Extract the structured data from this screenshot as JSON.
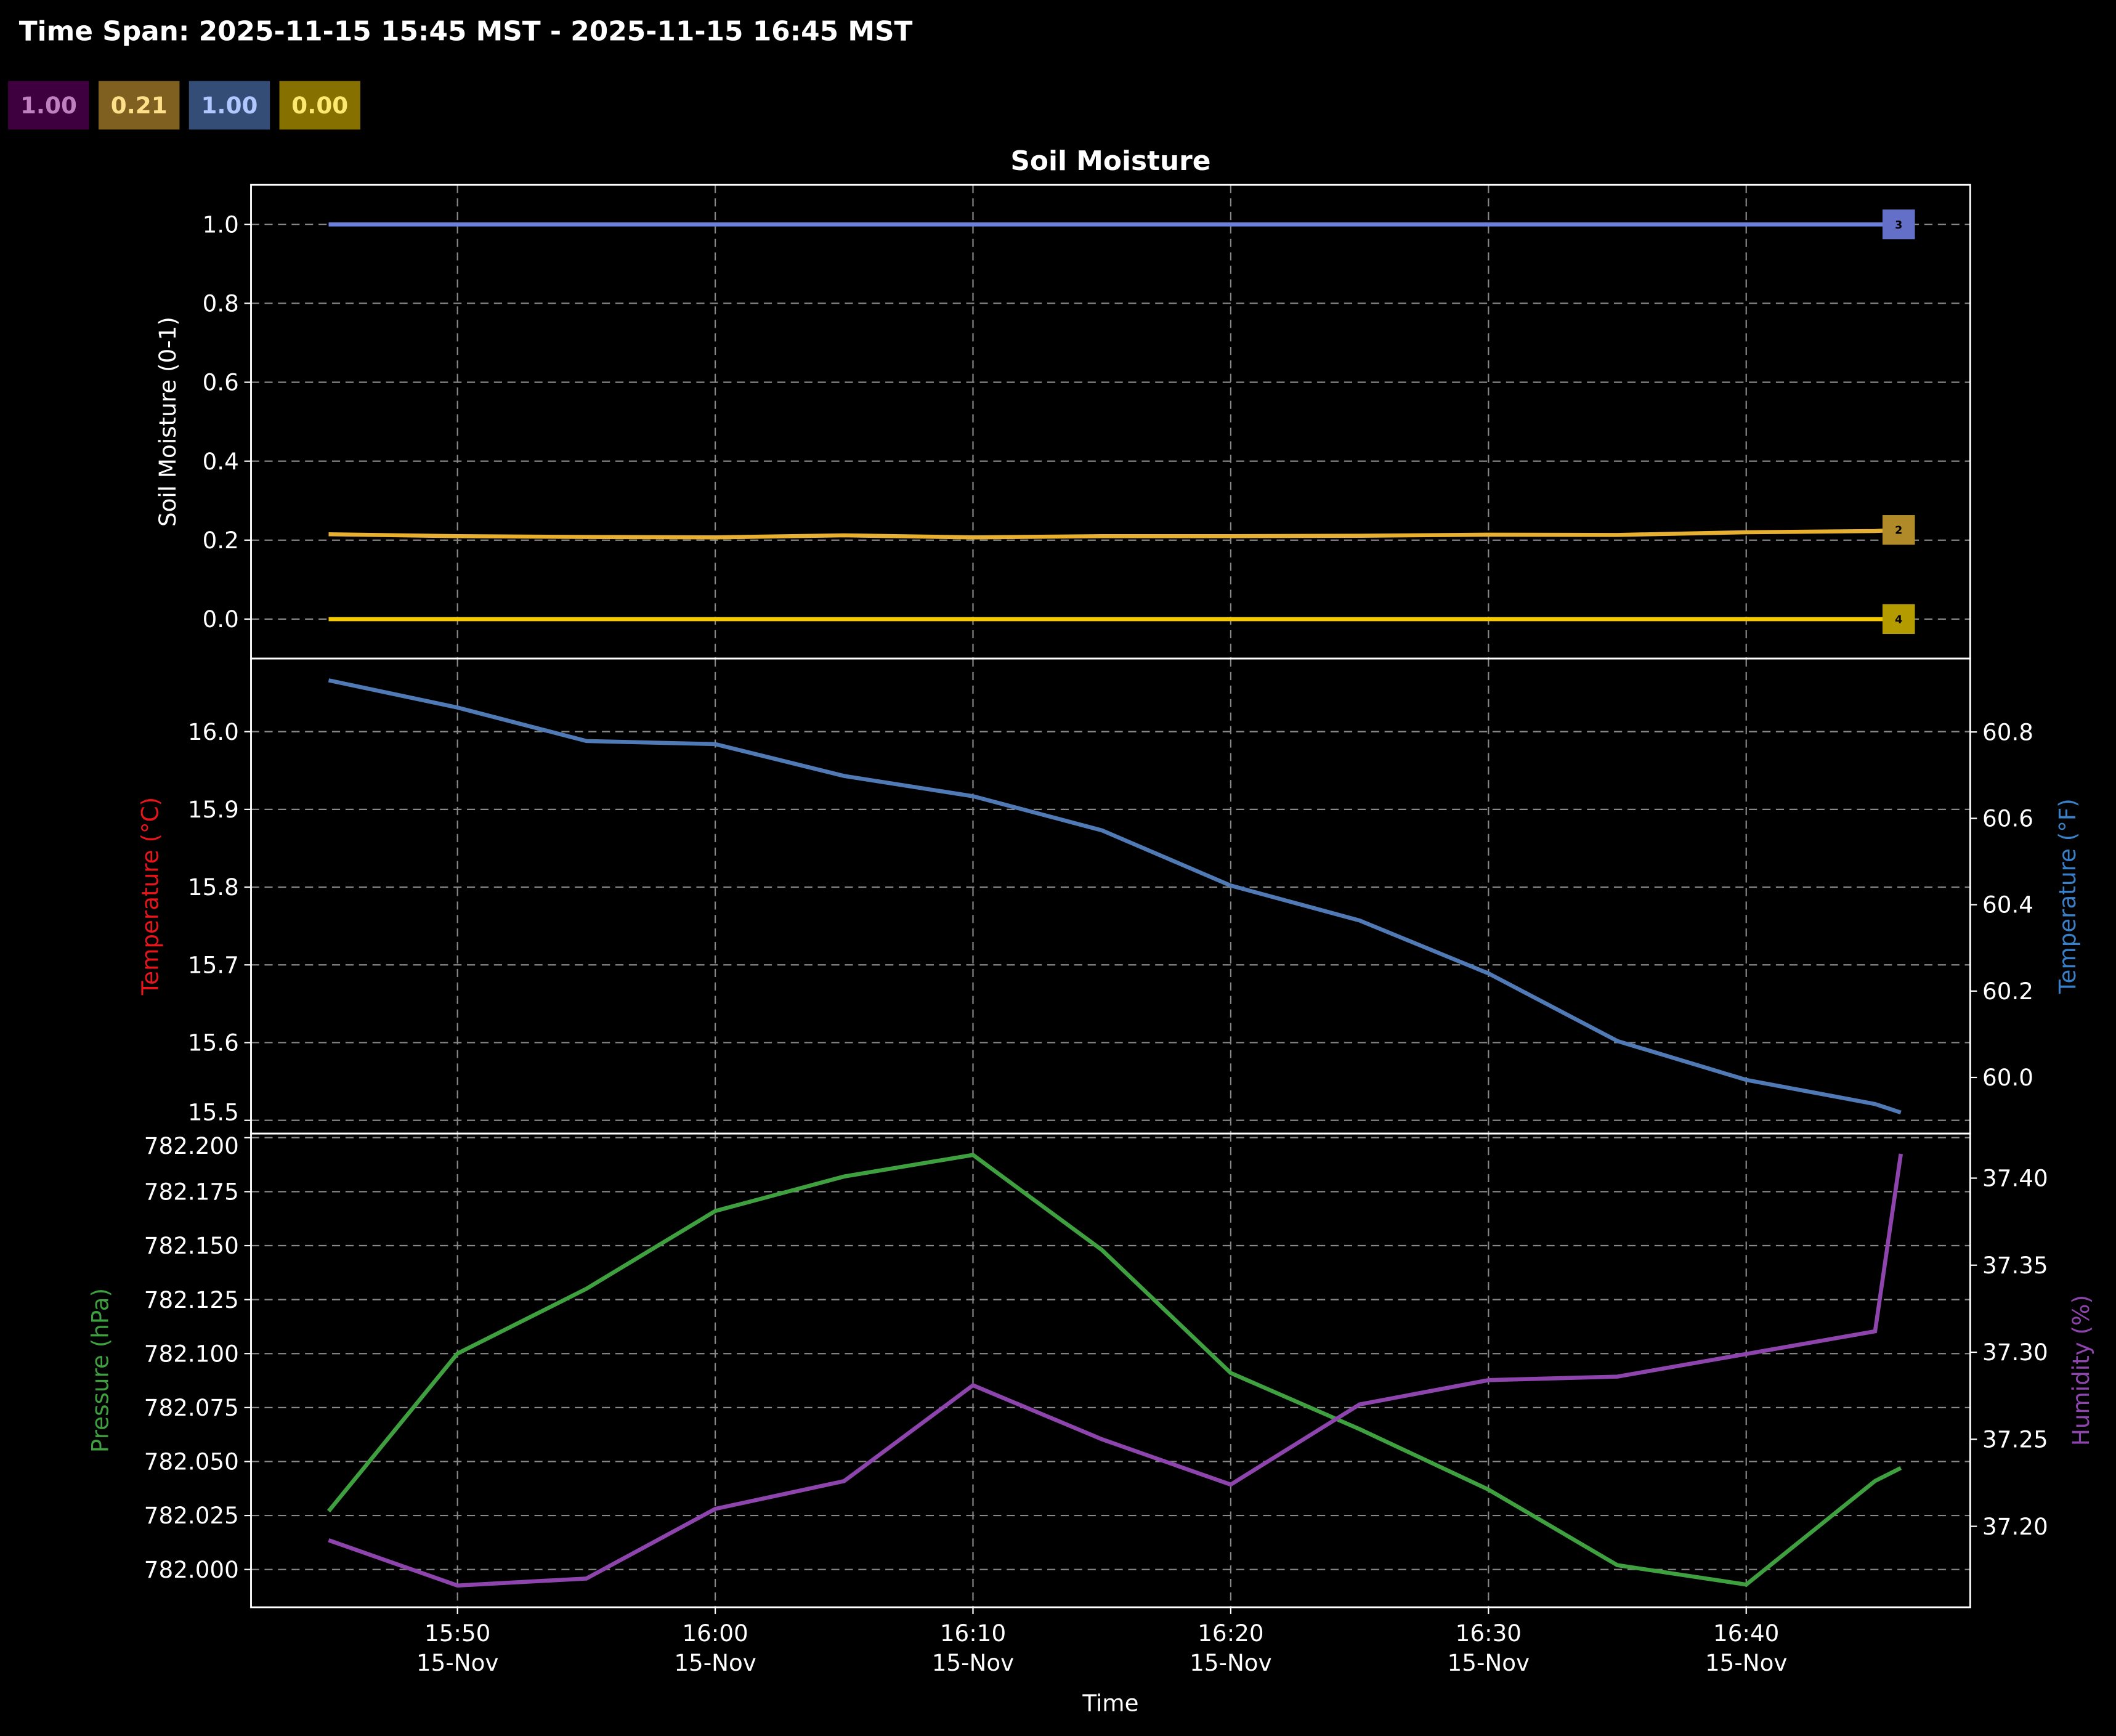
{
  "header": {
    "title": "Time Span: 2025-11-15 15:45 MST - 2025-11-15 16:45 MST",
    "badges": [
      {
        "label": "1.00",
        "bg": "#3f003f",
        "fg": "#c080c0"
      },
      {
        "label": "0.21",
        "bg": "#806020",
        "fg": "#ffe08a"
      },
      {
        "label": "1.00",
        "bg": "#334d77",
        "fg": "#b0c8ff"
      },
      {
        "label": "0.00",
        "bg": "#857000",
        "fg": "#ffe870"
      }
    ]
  },
  "chart_data": [
    {
      "type": "line",
      "title": "Soil Moisture",
      "ylabel": "Soil Moisture (0-1)",
      "ylim": [
        -0.1,
        1.1
      ],
      "yticks": [
        "0.0",
        "0.2",
        "0.4",
        "0.6",
        "0.8",
        "1.0"
      ],
      "grid": true,
      "x": [
        "15:45",
        "15:50",
        "15:55",
        "16:00",
        "16:05",
        "16:10",
        "16:15",
        "16:20",
        "16:25",
        "16:30",
        "16:35",
        "16:40",
        "16:45",
        "16:46"
      ],
      "series": [
        {
          "name": "3",
          "color": "#6a80dc",
          "label_bg": "#6470c8",
          "values": [
            1,
            1,
            1,
            1,
            1,
            1,
            1,
            1,
            1,
            1,
            1,
            1,
            1,
            1
          ]
        },
        {
          "name": "2",
          "color": "#e8b030",
          "label_bg": "#b08a28",
          "values": [
            0.215,
            0.21,
            0.208,
            0.207,
            0.212,
            0.207,
            0.21,
            0.21,
            0.211,
            0.214,
            0.213,
            0.22,
            0.223,
            0.226
          ]
        },
        {
          "name": "4",
          "color": "#f5c800",
          "label_bg": "#b39b00",
          "values": [
            0,
            0,
            0,
            0,
            0,
            0,
            0,
            0,
            0,
            0,
            0,
            0,
            0,
            0
          ]
        }
      ]
    },
    {
      "type": "line",
      "ylabel_left": "Temperature (°C)",
      "ylabel_right": "Temperature (°F)",
      "ylabel_left_color": "#e8161b",
      "ylabel_right_color": "#3a80c8",
      "ylim_left": [
        15.483,
        16.094
      ],
      "yticks_left": [
        "15.5",
        "15.6",
        "15.7",
        "15.8",
        "15.9",
        "16.0"
      ],
      "ylim_right": [
        59.87,
        60.97
      ],
      "yticks_right": [
        "60.0",
        "60.2",
        "60.4",
        "60.6",
        "60.8"
      ],
      "grid": true,
      "x": [
        "15:45",
        "15:50",
        "15:55",
        "16:00",
        "16:05",
        "16:10",
        "16:15",
        "16:20",
        "16:25",
        "16:30",
        "16:35",
        "16:40",
        "16:45",
        "16:46"
      ],
      "series": [
        {
          "color": "#4f7ab5",
          "values": [
            16.066,
            16.031,
            15.988,
            15.984,
            15.943,
            15.917,
            15.873,
            15.802,
            15.757,
            15.689,
            15.602,
            15.552,
            15.521,
            15.51
          ]
        }
      ]
    },
    {
      "type": "line",
      "xlabel": "Time",
      "xticks": [
        "15:50",
        "16:00",
        "16:10",
        "16:20",
        "16:30",
        "16:40"
      ],
      "xtick_sublabel": "15-Nov",
      "ylabel_left": "Pressure (hPa)",
      "ylabel_right": "Humidity (%)",
      "ylabel_left_color": "#3fa03f",
      "ylabel_right_color": "#8e44ad",
      "ylim_left": [
        781.9825,
        782.2019
      ],
      "yticks_left": [
        "782.000",
        "782.025",
        "782.050",
        "782.075",
        "782.100",
        "782.125",
        "782.150",
        "782.175",
        "782.200"
      ],
      "ylim_right": [
        37.1535,
        37.4256
      ],
      "yticks_right": [
        "37.20",
        "37.25",
        "37.30",
        "37.35",
        "37.40"
      ],
      "grid": true,
      "x": [
        "15:45",
        "15:50",
        "15:55",
        "16:00",
        "16:05",
        "16:10",
        "16:15",
        "16:20",
        "16:25",
        "16:30",
        "16:35",
        "16:40",
        "16:45",
        "16:46"
      ],
      "series": [
        {
          "axis": "left",
          "color": "#3fa03f",
          "values": [
            782.027,
            782.1,
            782.13,
            782.166,
            782.182,
            782.192,
            782.148,
            782.091,
            782.065,
            782.037,
            782.002,
            781.993,
            782.041,
            782.047
          ]
        },
        {
          "axis": "right",
          "color": "#8e44ad",
          "values": [
            37.192,
            37.166,
            37.17,
            37.21,
            37.226,
            37.281,
            37.25,
            37.224,
            37.27,
            37.284,
            37.286,
            37.299,
            37.312,
            37.414
          ]
        }
      ]
    }
  ]
}
